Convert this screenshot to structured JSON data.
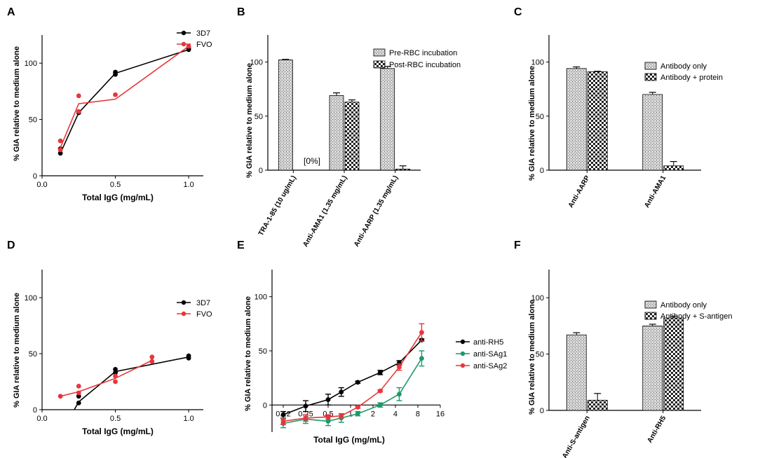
{
  "colors": {
    "black": "#000000",
    "red": "#e8363a",
    "green": "#1a9a6a",
    "white": "#ffffff"
  },
  "chart_data": [
    {
      "panel": "A",
      "type": "line",
      "ylabel": "% GIA relative to medium alone",
      "xlabel": "Total IgG (mg/mL)",
      "xlim": [
        0,
        1.1
      ],
      "ylim": [
        0,
        125
      ],
      "xticks": [
        0.0,
        0.5,
        1.0
      ],
      "xtick_labels": [
        "0.0",
        "0.5",
        "1.0"
      ],
      "yticks": [
        0,
        50,
        100
      ],
      "ytick_labels": [
        "0",
        "50",
        "100"
      ],
      "series": [
        {
          "name": "3D7",
          "color": "#000000",
          "line": [
            [
              0.125,
              20
            ],
            [
              0.25,
              56
            ],
            [
              0.5,
              91
            ],
            [
              1.0,
              112
            ]
          ],
          "points": [
            [
              0.125,
              20
            ],
            [
              0.125,
              24
            ],
            [
              0.25,
              56
            ],
            [
              0.25,
              57
            ],
            [
              0.5,
              90
            ],
            [
              0.5,
              92
            ],
            [
              1.0,
              112
            ],
            [
              1.0,
              113
            ]
          ]
        },
        {
          "name": "FVO",
          "color": "#e8363a",
          "line": [
            [
              0.125,
              25
            ],
            [
              0.25,
              64
            ],
            [
              0.5,
              68
            ],
            [
              1.0,
              115
            ]
          ],
          "points": [
            [
              0.125,
              31
            ],
            [
              0.125,
              23
            ],
            [
              0.25,
              71
            ],
            [
              0.25,
              57
            ],
            [
              0.5,
              72
            ],
            [
              1.0,
              115
            ]
          ]
        }
      ]
    },
    {
      "panel": "B",
      "type": "bar",
      "ylabel": "% GIA relative to medium alone",
      "ylim": [
        0,
        125
      ],
      "yticks": [
        0,
        50,
        100
      ],
      "ytick_labels": [
        "0",
        "50",
        "100"
      ],
      "categories": [
        "TRA-1-85 (10 ug/mL)",
        "Anti-AMA1 (1.35 mg/mL)",
        "Anti-AARP (1.35 mg/mL)"
      ],
      "series": [
        {
          "name": "Pre-RBC incubation",
          "values": [
            102,
            69,
            94
          ],
          "errors": [
            0.5,
            2.5,
            2
          ]
        },
        {
          "name": "Post-RBC incubation",
          "values": [
            0,
            63,
            1
          ],
          "errors": [
            0,
            2,
            3
          ]
        }
      ],
      "annotation": "[0%]"
    },
    {
      "panel": "C",
      "type": "bar",
      "ylabel": "% GIA relative to medium alone",
      "ylim": [
        0,
        125
      ],
      "yticks": [
        0,
        50,
        100
      ],
      "ytick_labels": [
        "0",
        "50",
        "100"
      ],
      "categories": [
        "Anti-AARP",
        "Anti-AMA1"
      ],
      "series": [
        {
          "name": "Antibody only",
          "values": [
            94,
            70
          ],
          "errors": [
            1.5,
            2
          ]
        },
        {
          "name": "Antibody + protein",
          "values": [
            91,
            4
          ],
          "errors": [
            0.5,
            4
          ]
        }
      ]
    },
    {
      "panel": "D",
      "type": "line",
      "ylabel": "% GIA relative to medium alone",
      "xlabel": "Total IgG (mg/mL)",
      "xlim": [
        0,
        1.1
      ],
      "ylim": [
        0,
        125
      ],
      "xticks": [
        0.0,
        0.5,
        1.0
      ],
      "xtick_labels": [
        "0.0",
        "0.5",
        "1.0"
      ],
      "yticks": [
        0,
        50,
        100
      ],
      "ytick_labels": [
        "0",
        "50",
        "100"
      ],
      "series": [
        {
          "name": "3D7",
          "color": "#000000",
          "line": [
            [
              0.22,
              0
            ],
            [
              0.25,
              7
            ],
            [
              0.5,
              34
            ],
            [
              1.0,
              47
            ]
          ],
          "points": [
            [
              0.25,
              6
            ],
            [
              0.25,
              12
            ],
            [
              0.5,
              33
            ],
            [
              0.5,
              36
            ],
            [
              1.0,
              46
            ],
            [
              1.0,
              48
            ]
          ]
        },
        {
          "name": "FVO",
          "color": "#e8363a",
          "line": [
            [
              0.125,
              12
            ],
            [
              0.25,
              16
            ],
            [
              0.5,
              28
            ],
            [
              0.75,
              44
            ]
          ],
          "points": [
            [
              0.125,
              12
            ],
            [
              0.25,
              21
            ],
            [
              0.25,
              15
            ],
            [
              0.5,
              25
            ],
            [
              0.5,
              30
            ],
            [
              0.75,
              43
            ],
            [
              0.75,
              47
            ]
          ]
        }
      ]
    },
    {
      "panel": "E",
      "type": "line",
      "ylabel": "% GIA relative to medium alone",
      "xlabel": "Total  IgG (mg/mL)",
      "xscale": "log2",
      "xlim": [
        0.0884,
        16
      ],
      "ylim": [
        -25,
        125
      ],
      "xticks": [
        0.125,
        0.25,
        0.5,
        1,
        2,
        4,
        8,
        16
      ],
      "xtick_labels": [
        "0.12",
        "0.25",
        "0.5",
        "1",
        "2",
        "4",
        "8",
        "16"
      ],
      "yticks": [
        0,
        50,
        100
      ],
      "ytick_labels": [
        "0",
        "50",
        "100"
      ],
      "series": [
        {
          "name": "anti-RH5",
          "color": "#000000",
          "x": [
            0.125,
            0.25,
            0.5,
            0.75,
            1.25,
            2.5,
            4.5,
            9
          ],
          "values": [
            -9,
            -1,
            5,
            12,
            21,
            30,
            39,
            60
          ],
          "errors": [
            3,
            5,
            5,
            4,
            1,
            2,
            2,
            1
          ]
        },
        {
          "name": "anti-SAg1",
          "color": "#1a9a6a",
          "x": [
            0.125,
            0.25,
            0.5,
            0.75,
            1.25,
            2.5,
            4.5,
            9
          ],
          "values": [
            -17,
            -13,
            -15,
            -12,
            -8,
            0,
            10,
            43
          ],
          "errors": [
            4,
            4,
            4,
            4,
            2,
            2,
            6,
            7
          ]
        },
        {
          "name": "anti-SAg2",
          "color": "#e8363a",
          "x": [
            0.125,
            0.25,
            0.5,
            0.75,
            1.25,
            2.5,
            4.5,
            9
          ],
          "values": [
            -15,
            -12,
            -11,
            -10,
            -2,
            13,
            35,
            67
          ],
          "errors": [
            3,
            3,
            2,
            2,
            1,
            1,
            3,
            8
          ]
        }
      ]
    },
    {
      "panel": "F",
      "type": "bar",
      "ylabel": "% GIA relative to medium alone",
      "ylim": [
        0,
        125
      ],
      "yticks": [
        0,
        50,
        100
      ],
      "ytick_labels": [
        "0",
        "50",
        "100"
      ],
      "categories": [
        "Anti-S-antigen",
        "Anti-RH5"
      ],
      "series": [
        {
          "name": "Antibody only",
          "values": [
            67,
            75
          ],
          "errors": [
            2,
            1.5
          ]
        },
        {
          "name": "Antibody + S-antigen",
          "values": [
            9,
            82
          ],
          "errors": [
            6,
            1.5
          ]
        }
      ]
    }
  ]
}
